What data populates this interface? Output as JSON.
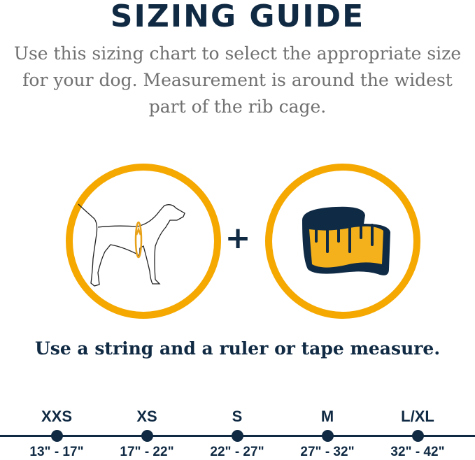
{
  "title": "SIZING GUIDE",
  "subtitle": "Use this sizing chart to select the appropriate size for your dog. Measurement is around the widest part of the rib cage.",
  "plus": "+",
  "note": "Use a string and a ruler or tape measure.",
  "colors": {
    "navy": "#102a43",
    "accent": "#f5a800",
    "gray": "#707070"
  },
  "icons": [
    "dog-measure-icon",
    "tape-measure-icon"
  ],
  "sizes": [
    {
      "label": "XXS",
      "range": "13\" - 17\""
    },
    {
      "label": "XS",
      "range": "17\" - 22\""
    },
    {
      "label": "S",
      "range": "22\" - 27\""
    },
    {
      "label": "M",
      "range": "27\" - 32\""
    },
    {
      "label": "L/XL",
      "range": "32\" - 42\""
    }
  ]
}
